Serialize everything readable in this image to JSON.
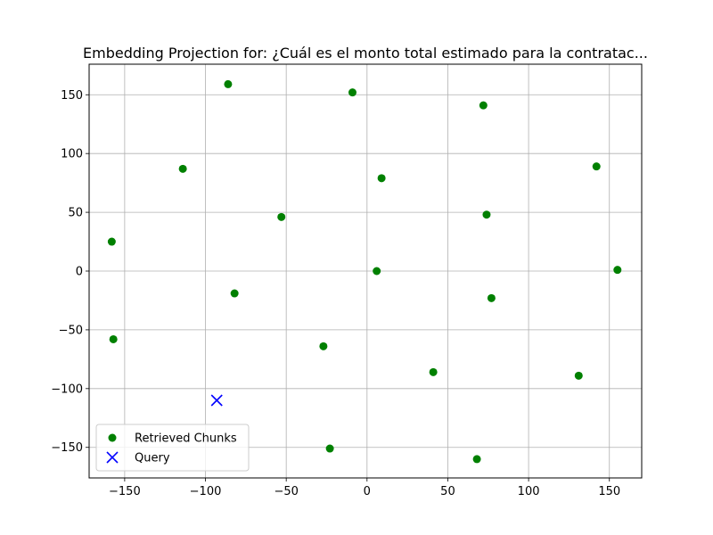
{
  "chart_data": {
    "type": "scatter",
    "title": "Embedding Projection for: ¿Cuál es el monto total estimado para la contratac...",
    "xlabel": "",
    "ylabel": "",
    "xlim": [
      -172,
      170
    ],
    "ylim": [
      -176,
      176
    ],
    "x_ticks": [
      -150,
      -100,
      -50,
      0,
      50,
      100,
      150
    ],
    "y_ticks": [
      -150,
      -100,
      -50,
      0,
      50,
      100,
      150
    ],
    "grid": true,
    "legend_position": "lower-left",
    "series": [
      {
        "name": "Retrieved Chunks",
        "marker": "circle",
        "color": "#008000",
        "points": [
          {
            "x": -86,
            "y": 159
          },
          {
            "x": -9,
            "y": 152
          },
          {
            "x": 72,
            "y": 141
          },
          {
            "x": -114,
            "y": 87
          },
          {
            "x": 142,
            "y": 89
          },
          {
            "x": 9,
            "y": 79
          },
          {
            "x": -53,
            "y": 46
          },
          {
            "x": 74,
            "y": 48
          },
          {
            "x": -158,
            "y": 25
          },
          {
            "x": 6,
            "y": 0
          },
          {
            "x": 155,
            "y": 1
          },
          {
            "x": -82,
            "y": -19
          },
          {
            "x": 77,
            "y": -23
          },
          {
            "x": -157,
            "y": -58
          },
          {
            "x": -27,
            "y": -64
          },
          {
            "x": 41,
            "y": -86
          },
          {
            "x": 131,
            "y": -89
          },
          {
            "x": -23,
            "y": -151
          },
          {
            "x": 68,
            "y": -160
          }
        ]
      },
      {
        "name": "Query",
        "marker": "x",
        "color": "#0000ff",
        "points": [
          {
            "x": -93,
            "y": -110
          }
        ]
      }
    ]
  }
}
